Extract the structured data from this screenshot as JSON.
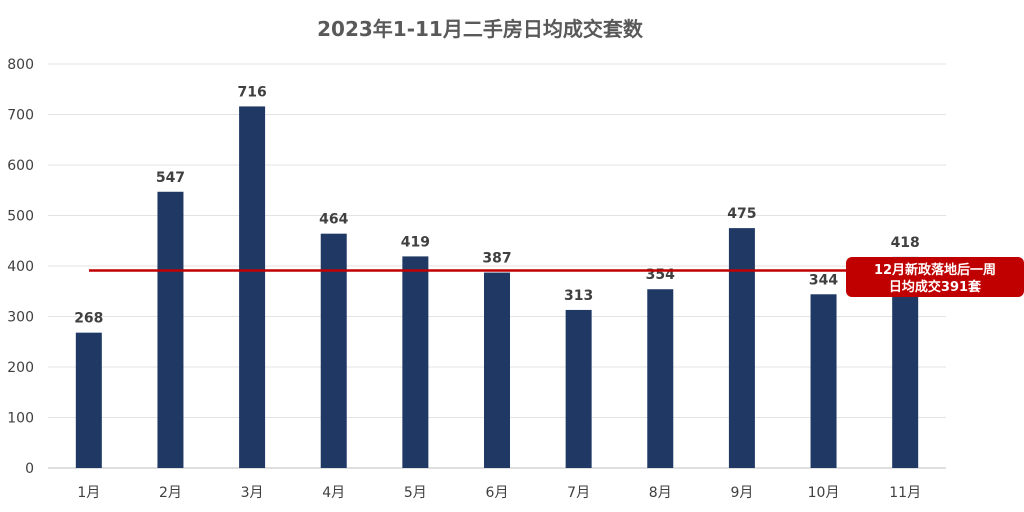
{
  "chart_data": {
    "type": "bar",
    "title": "2023年1-11月二手房日均成交套数",
    "xlabel": "",
    "ylabel": "",
    "categories": [
      "1月",
      "2月",
      "3月",
      "4月",
      "5月",
      "6月",
      "7月",
      "8月",
      "9月",
      "10月",
      "11月"
    ],
    "values": [
      268,
      547,
      716,
      464,
      419,
      387,
      313,
      354,
      475,
      344,
      418
    ],
    "data_labels": [
      "268",
      "547",
      "716",
      "464",
      "419",
      "387",
      "313",
      "354",
      "475",
      "344",
      "418"
    ],
    "ylim": [
      0,
      800
    ],
    "yticks": [
      0,
      100,
      200,
      300,
      400,
      500,
      600,
      700,
      800
    ],
    "ytick_labels": [
      "0",
      "100",
      "200",
      "300",
      "400",
      "500",
      "600",
      "700",
      "800"
    ],
    "grid": true,
    "bar_color": "#1f3864",
    "reference_line": {
      "value": 391,
      "color": "#c00000",
      "annotation_lines": [
        "12月新政落地后一周",
        "日均成交391套"
      ]
    }
  }
}
